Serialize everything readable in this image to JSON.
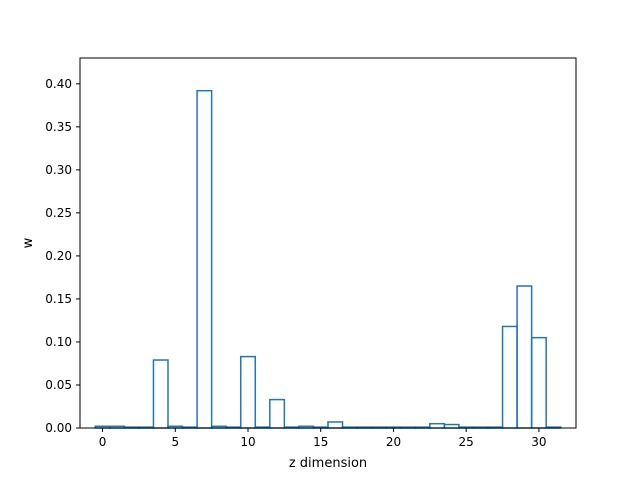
{
  "chart_data": {
    "type": "bar",
    "style": "step-histogram",
    "xlabel": "z dimension",
    "ylabel": "w",
    "xlim": [
      -1.55,
      32.55
    ],
    "ylim": [
      0,
      0.43
    ],
    "grid": false,
    "line_color": "#1f77b4",
    "xticks": [
      0,
      5,
      10,
      15,
      20,
      25,
      30
    ],
    "yticks": [
      0.0,
      0.05,
      0.1,
      0.15,
      0.2,
      0.25,
      0.3,
      0.35,
      0.4
    ],
    "xtick_labels": [
      "0",
      "5",
      "10",
      "15",
      "20",
      "25",
      "30"
    ],
    "ytick_labels": [
      "0.00",
      "0.05",
      "0.10",
      "0.15",
      "0.20",
      "0.25",
      "0.30",
      "0.35",
      "0.40"
    ],
    "x": [
      0,
      1,
      2,
      3,
      4,
      5,
      6,
      7,
      8,
      9,
      10,
      11,
      12,
      13,
      14,
      15,
      16,
      17,
      18,
      19,
      20,
      21,
      22,
      23,
      24,
      25,
      26,
      27,
      28,
      29,
      30,
      31
    ],
    "values": [
      0.002,
      0.002,
      0.001,
      0.001,
      0.079,
      0.002,
      0.001,
      0.392,
      0.002,
      0.001,
      0.083,
      0.001,
      0.033,
      0.001,
      0.002,
      0.001,
      0.007,
      0.001,
      0.001,
      0.001,
      0.001,
      0.001,
      0.001,
      0.005,
      0.004,
      0.001,
      0.001,
      0.001,
      0.118,
      0.165,
      0.105,
      0.001
    ]
  }
}
